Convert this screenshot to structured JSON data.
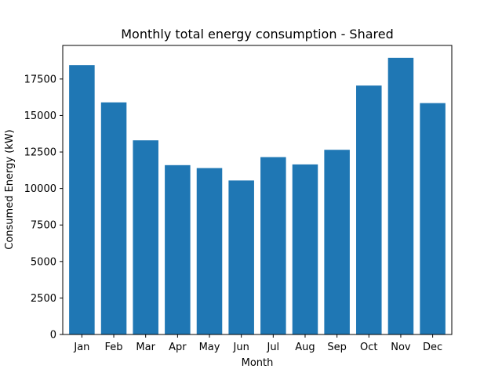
{
  "chart_data": {
    "type": "bar",
    "title": "Monthly total energy consumption - Shared",
    "xlabel": "Month",
    "ylabel": "Consumed Energy (kW)",
    "categories": [
      "Jan",
      "Feb",
      "Mar",
      "Apr",
      "May",
      "Jun",
      "Jul",
      "Aug",
      "Sep",
      "Oct",
      "Nov",
      "Dec"
    ],
    "values": [
      18450,
      15900,
      13300,
      11600,
      11400,
      10550,
      12150,
      11650,
      12650,
      17050,
      18950,
      15850
    ],
    "ylim": [
      0,
      19800
    ],
    "yticks": [
      0,
      2500,
      5000,
      7500,
      10000,
      12500,
      15000,
      17500
    ],
    "ytick_labels": [
      "0",
      "2500",
      "5000",
      "7500",
      "10000",
      "12500",
      "15000",
      "17500"
    ],
    "bar_color": "#1f77b4",
    "grid": false,
    "legend": false
  }
}
